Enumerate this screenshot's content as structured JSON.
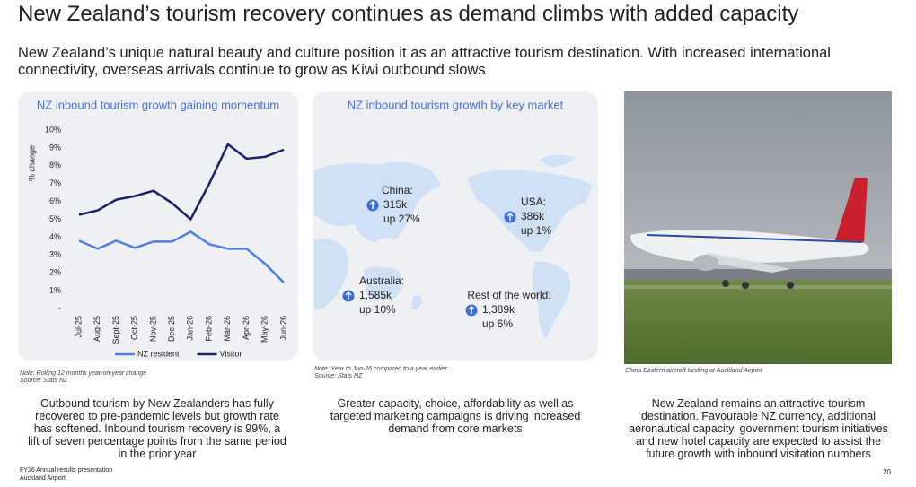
{
  "header": {
    "title": "New Zealand’s tourism recovery continues as demand climbs with added capacity",
    "subtitle": "New Zealand’s unique natural beauty and culture position it as an attractive tourism destination.  With increased international connectivity, overseas arrivals continue to grow as Kiwi outbound slows"
  },
  "chart_data": {
    "type": "line",
    "title": "NZ inbound tourism growth gaining momentum",
    "y_label": "% change",
    "categories": [
      "Jul-25",
      "Aug-25",
      "Sept-25",
      "Oct-25",
      "Nov-25",
      "Dec-25",
      "Jan-26",
      "Feb-26",
      "Mar-26",
      "Apr-26",
      "May-26",
      "Jun-26"
    ],
    "series": [
      {
        "name": "NZ resident",
        "color": "#4f7fe0",
        "values": [
          3.8,
          3.35,
          3.8,
          3.4,
          3.75,
          3.75,
          4.3,
          3.6,
          3.35,
          3.35,
          2.5,
          1.45
        ]
      },
      {
        "name": "Visitor",
        "color": "#1f1f6b",
        "values": [
          5.25,
          5.5,
          6.1,
          6.3,
          6.6,
          5.9,
          5.0,
          7.0,
          9.2,
          8.4,
          8.5,
          8.9
        ]
      }
    ],
    "ylim": [
      0,
      10
    ],
    "yticks": [
      {
        "value": 0,
        "label": "-"
      },
      {
        "value": 1,
        "label": "1%"
      },
      {
        "value": 2,
        "label": "2%"
      },
      {
        "value": 3,
        "label": "3%"
      },
      {
        "value": 4,
        "label": "4%"
      },
      {
        "value": 5,
        "label": "5%"
      },
      {
        "value": 6,
        "label": "6%"
      },
      {
        "value": 7,
        "label": "7%"
      },
      {
        "value": 8,
        "label": "8%"
      },
      {
        "value": 9,
        "label": "9%"
      },
      {
        "value": 10,
        "label": "10%"
      }
    ],
    "grid": false,
    "legend": "bottom",
    "notes": [
      "Note: Rolling 12 months year-on-year change",
      "Source: Stats NZ"
    ]
  },
  "panels": [
    {
      "body": "Outbound tourism by New Zealanders has fully recovered to pre-pandemic levels but growth rate has softened.  Inbound tourism recovery is 99%, a lift of seven percentage points from the same period in the prior year"
    },
    {
      "title": "NZ inbound tourism growth by key market",
      "markets": [
        {
          "name": "China:",
          "arrivals": "315k",
          "growth": "up 27%"
        },
        {
          "name": "USA:",
          "arrivals": "386k",
          "growth": "up 1%"
        },
        {
          "name": "Australia:",
          "arrivals": "1,585k",
          "growth": "up 10%"
        },
        {
          "name": "Rest of the world:",
          "arrivals": "1,389k",
          "growth": "up 6%"
        }
      ],
      "notes": [
        "Note: Year to Jun-26 compared to a year earlier.",
        "Source: Stats NZ"
      ],
      "body": "Greater capacity, choice, affordability as well as targeted marketing campaigns is driving increased demand from core markets"
    },
    {
      "caption": "China Eastern aircraft landing at Auckland Airport",
      "body": "New Zealand remains an attractive tourism destination. Favourable NZ currency, additional aeronautical capacity, government tourism initiatives and new hotel capacity are expected to assist the future growth with inbound visitation numbers"
    }
  ],
  "footer": {
    "lines": [
      "FY26 Annual results presentation",
      "Auckland Airport"
    ],
    "page": "20"
  }
}
